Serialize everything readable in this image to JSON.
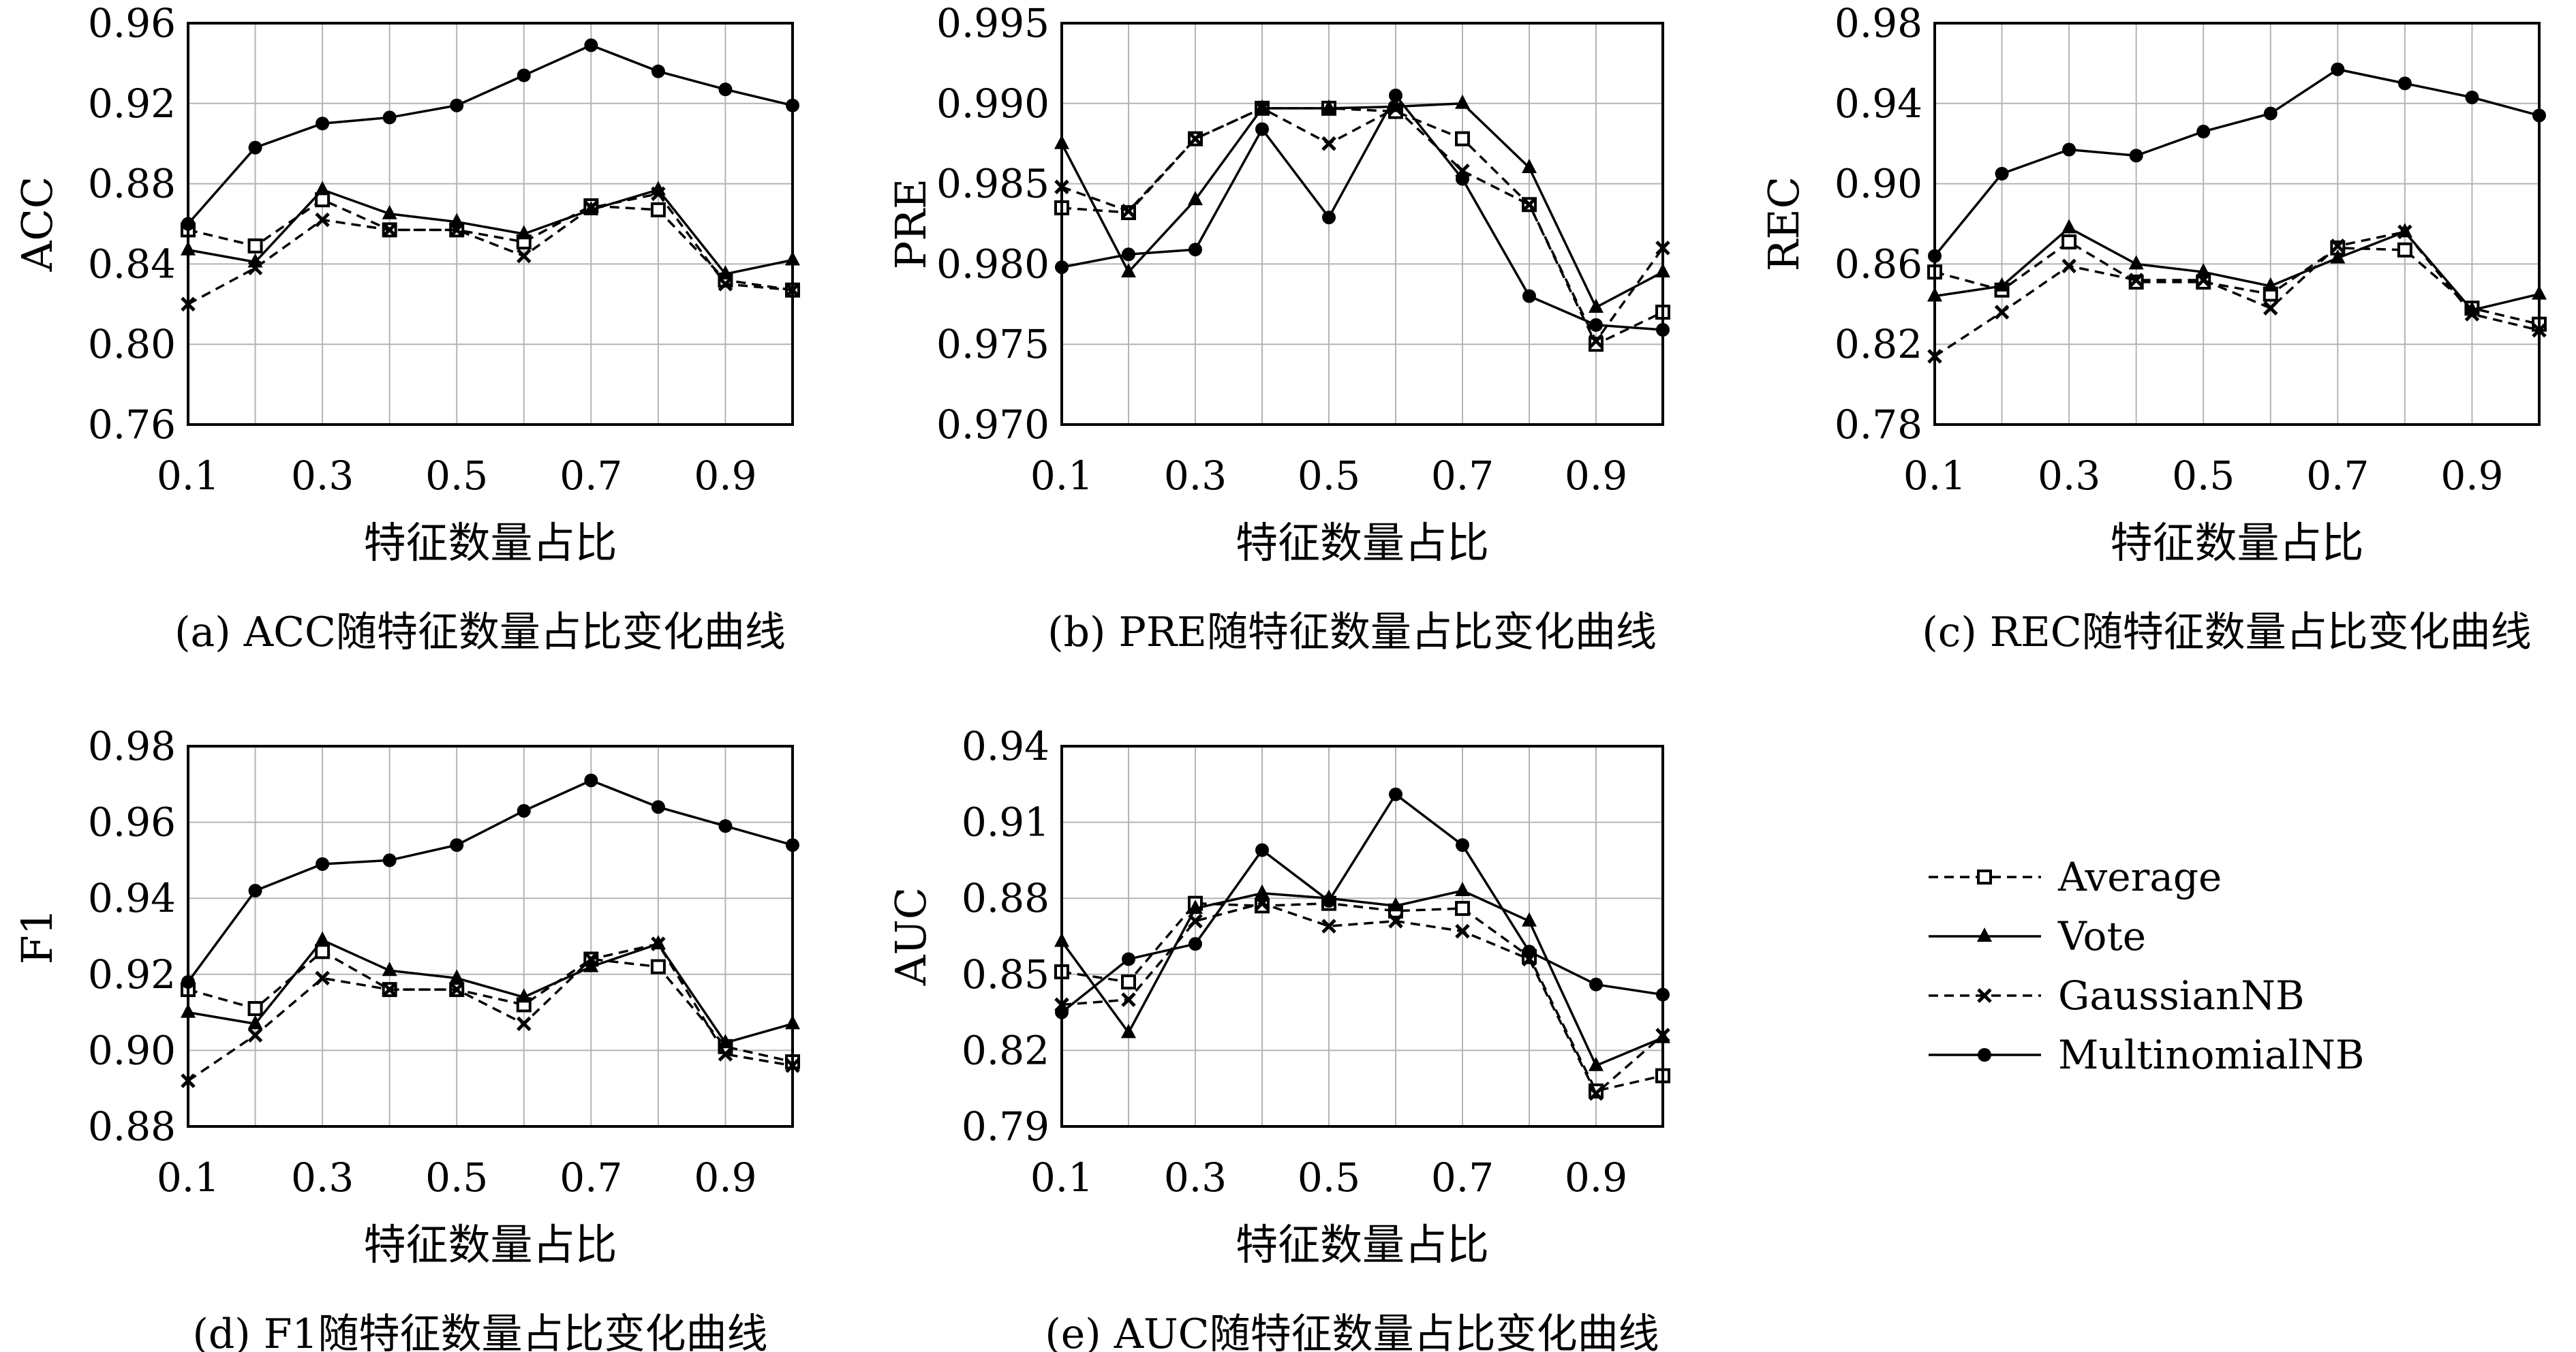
{
  "colors": {
    "ink": "#000000",
    "grid": "#b4b4b4",
    "background": "#ffffff"
  },
  "legend": [
    {
      "key": "avg",
      "label": "Average",
      "dash": "dashed",
      "marker": "square-open"
    },
    {
      "key": "vote",
      "label": "Vote",
      "dash": "solid",
      "marker": "triangle"
    },
    {
      "key": "gnb",
      "label": "GaussianNB",
      "dash": "dashed",
      "marker": "x"
    },
    {
      "key": "mnb",
      "label": "MultinomialNB",
      "dash": "solid",
      "marker": "circle"
    }
  ],
  "chart_data": [
    {
      "type": "line",
      "caption": "(a) ACC随特征数量占比变化曲线",
      "xlabel": "特征数量占比",
      "ylabel": "ACC",
      "x": [
        0.1,
        0.2,
        0.3,
        0.4,
        0.5,
        0.6,
        0.7,
        0.8,
        0.9,
        1.0
      ],
      "xticks": [
        "0.1",
        "0.3",
        "0.5",
        "0.7",
        "0.9"
      ],
      "xlim": [
        0.1,
        1.0
      ],
      "ylim": [
        0.76,
        0.96
      ],
      "yticks": [
        "0.76",
        "0.80",
        "0.84",
        "0.88",
        "0.92",
        "0.96"
      ],
      "grid": true,
      "series": [
        {
          "key": "avg",
          "name": "Average",
          "values": [
            0.857,
            0.849,
            0.872,
            0.857,
            0.857,
            0.851,
            0.869,
            0.867,
            0.832,
            0.827
          ]
        },
        {
          "key": "vote",
          "name": "Vote",
          "values": [
            0.847,
            0.841,
            0.877,
            0.865,
            0.861,
            0.855,
            0.867,
            0.877,
            0.835,
            0.842
          ]
        },
        {
          "key": "gnb",
          "name": "GaussianNB",
          "values": [
            0.82,
            0.838,
            0.862,
            0.857,
            0.857,
            0.844,
            0.868,
            0.875,
            0.83,
            0.827
          ]
        },
        {
          "key": "mnb",
          "name": "MultinomialNB",
          "values": [
            0.86,
            0.898,
            0.91,
            0.913,
            0.919,
            0.934,
            0.949,
            0.936,
            0.927,
            0.919
          ]
        }
      ]
    },
    {
      "type": "line",
      "caption": "(b) PRE随特征数量占比变化曲线",
      "xlabel": "特征数量占比",
      "ylabel": "PRE",
      "x": [
        0.1,
        0.2,
        0.3,
        0.4,
        0.5,
        0.6,
        0.7,
        0.8,
        0.9,
        1.0
      ],
      "xticks": [
        "0.1",
        "0.3",
        "0.5",
        "0.7",
        "0.9"
      ],
      "xlim": [
        0.1,
        1.0
      ],
      "ylim": [
        0.97,
        0.995
      ],
      "yticks": [
        "0.970",
        "0.975",
        "0.980",
        "0.985",
        "0.990",
        "0.995"
      ],
      "grid": true,
      "series": [
        {
          "key": "avg",
          "name": "Average",
          "values": [
            0.9835,
            0.9832,
            0.9878,
            0.9897,
            0.9897,
            0.9895,
            0.9878,
            0.9837,
            0.975,
            0.977
          ]
        },
        {
          "key": "vote",
          "name": "Vote",
          "values": [
            0.9875,
            0.9795,
            0.984,
            0.9897,
            0.9897,
            0.9898,
            0.99,
            0.986,
            0.9773,
            0.9795
          ]
        },
        {
          "key": "gnb",
          "name": "GaussianNB",
          "values": [
            0.9848,
            0.9833,
            0.9878,
            0.9897,
            0.9875,
            0.9897,
            0.9858,
            0.9837,
            0.9752,
            0.981
          ]
        },
        {
          "key": "mnb",
          "name": "MultinomialNB",
          "values": [
            0.9798,
            0.9806,
            0.9809,
            0.9884,
            0.9829,
            0.9905,
            0.9853,
            0.978,
            0.9762,
            0.9759
          ]
        }
      ]
    },
    {
      "type": "line",
      "caption": "(c) REC随特征数量占比变化曲线",
      "xlabel": "特征数量占比",
      "ylabel": "REC",
      "x": [
        0.1,
        0.2,
        0.3,
        0.4,
        0.5,
        0.6,
        0.7,
        0.8,
        0.9,
        1.0
      ],
      "xticks": [
        "0.1",
        "0.3",
        "0.5",
        "0.7",
        "0.9"
      ],
      "xlim": [
        0.1,
        1.0
      ],
      "ylim": [
        0.78,
        0.98
      ],
      "yticks": [
        "0.78",
        "0.82",
        "0.86",
        "0.90",
        "0.94",
        "0.98"
      ],
      "grid": true,
      "series": [
        {
          "key": "avg",
          "name": "Average",
          "values": [
            0.856,
            0.847,
            0.871,
            0.851,
            0.851,
            0.845,
            0.868,
            0.867,
            0.838,
            0.83
          ]
        },
        {
          "key": "vote",
          "name": "Vote",
          "values": [
            0.844,
            0.849,
            0.878,
            0.86,
            0.856,
            0.849,
            0.863,
            0.876,
            0.837,
            0.845
          ]
        },
        {
          "key": "gnb",
          "name": "GaussianNB",
          "values": [
            0.814,
            0.836,
            0.859,
            0.852,
            0.852,
            0.838,
            0.869,
            0.876,
            0.835,
            0.827
          ]
        },
        {
          "key": "mnb",
          "name": "MultinomialNB",
          "values": [
            0.864,
            0.905,
            0.917,
            0.914,
            0.926,
            0.935,
            0.957,
            0.95,
            0.943,
            0.934
          ]
        }
      ]
    },
    {
      "type": "line",
      "caption": "(d) F1随特征数量占比变化曲线",
      "xlabel": "特征数量占比",
      "ylabel": "F1",
      "x": [
        0.1,
        0.2,
        0.3,
        0.4,
        0.5,
        0.6,
        0.7,
        0.8,
        0.9,
        1.0
      ],
      "xticks": [
        "0.1",
        "0.3",
        "0.5",
        "0.7",
        "0.9"
      ],
      "xlim": [
        0.1,
        1.0
      ],
      "ylim": [
        0.88,
        0.98
      ],
      "yticks": [
        "0.88",
        "0.90",
        "0.92",
        "0.94",
        "0.96",
        "0.98"
      ],
      "grid": true,
      "series": [
        {
          "key": "avg",
          "name": "Average",
          "values": [
            0.916,
            0.911,
            0.926,
            0.916,
            0.916,
            0.912,
            0.924,
            0.922,
            0.901,
            0.897
          ]
        },
        {
          "key": "vote",
          "name": "Vote",
          "values": [
            0.91,
            0.907,
            0.929,
            0.921,
            0.919,
            0.914,
            0.922,
            0.928,
            0.902,
            0.907
          ]
        },
        {
          "key": "gnb",
          "name": "GaussianNB",
          "values": [
            0.892,
            0.904,
            0.919,
            0.916,
            0.916,
            0.907,
            0.924,
            0.928,
            0.899,
            0.896
          ]
        },
        {
          "key": "mnb",
          "name": "MultinomialNB",
          "values": [
            0.918,
            0.942,
            0.949,
            0.95,
            0.954,
            0.963,
            0.971,
            0.964,
            0.959,
            0.954
          ]
        }
      ]
    },
    {
      "type": "line",
      "caption": "(e) AUC随特征数量占比变化曲线",
      "xlabel": "特征数量占比",
      "ylabel": "AUC",
      "x": [
        0.1,
        0.2,
        0.3,
        0.4,
        0.5,
        0.6,
        0.7,
        0.8,
        0.9,
        1.0
      ],
      "xticks": [
        "0.1",
        "0.3",
        "0.5",
        "0.7",
        "0.9"
      ],
      "xlim": [
        0.1,
        1.0
      ],
      "ylim": [
        0.79,
        0.94
      ],
      "yticks": [
        "0.79",
        "0.82",
        "0.85",
        "0.88",
        "0.91",
        "0.94"
      ],
      "grid": true,
      "legend_position": "right of panel (e)",
      "series": [
        {
          "key": "avg",
          "name": "Average",
          "values": [
            0.851,
            0.847,
            0.878,
            0.877,
            0.878,
            0.875,
            0.876,
            0.857,
            0.804,
            0.81
          ]
        },
        {
          "key": "vote",
          "name": "Vote",
          "values": [
            0.863,
            0.827,
            0.876,
            0.882,
            0.88,
            0.877,
            0.883,
            0.871,
            0.814,
            0.825
          ]
        },
        {
          "key": "gnb",
          "name": "GaussianNB",
          "values": [
            0.838,
            0.84,
            0.871,
            0.878,
            0.869,
            0.871,
            0.867,
            0.856,
            0.803,
            0.826
          ]
        },
        {
          "key": "mnb",
          "name": "MultinomialNB",
          "values": [
            0.835,
            0.856,
            0.862,
            0.899,
            0.879,
            0.921,
            0.901,
            0.859,
            0.846,
            0.842
          ]
        }
      ]
    }
  ]
}
